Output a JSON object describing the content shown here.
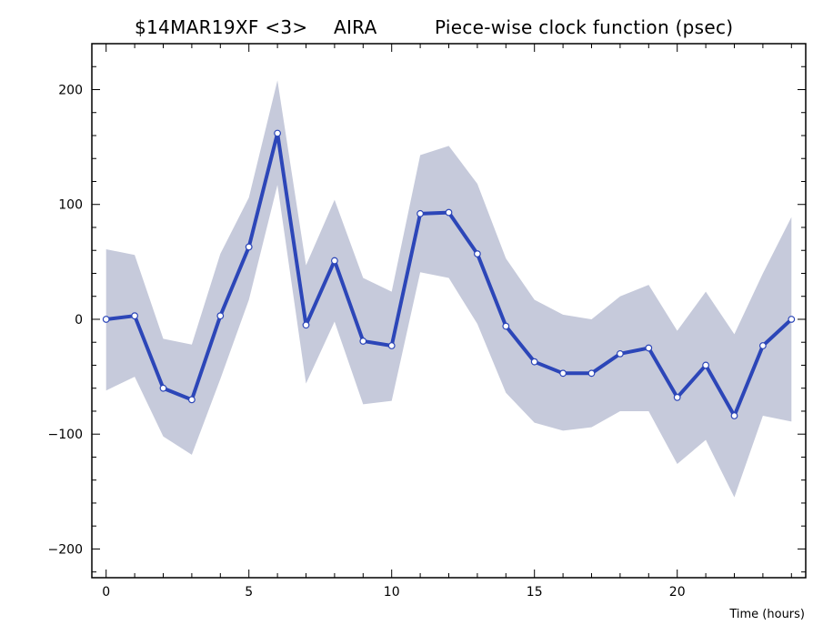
{
  "title": {
    "experiment": "$14MAR19XF <3>",
    "station": "AIRA",
    "description": "Piece-wise clock function (psec)"
  },
  "chart_data": {
    "type": "line",
    "title": "$14MAR19XF <3>   AIRA        Piece-wise clock function (psec)",
    "xlabel": "Time (hours)",
    "ylabel": "",
    "xlim": [
      -0.5,
      24.5
    ],
    "ylim": [
      -225,
      240
    ],
    "x_ticks": [
      0,
      5,
      10,
      15,
      20
    ],
    "y_ticks": [
      -200,
      -100,
      0,
      100,
      200
    ],
    "grid": false,
    "series": [
      {
        "x": [
          0,
          1,
          2,
          3,
          4,
          5,
          6,
          7,
          8,
          9,
          10,
          11,
          12,
          13,
          14,
          15,
          16,
          17,
          18,
          19,
          20,
          21,
          22,
          23,
          24
        ],
        "values": [
          0,
          3,
          -60,
          -70,
          3,
          63,
          162,
          -5,
          51,
          -19,
          -23,
          92,
          93,
          57,
          -6,
          -37,
          -47,
          -47,
          -30,
          -25,
          -68,
          -40,
          -84,
          -23,
          0
        ],
        "band_upper": [
          61,
          56,
          -17,
          -22,
          57,
          106,
          208,
          47,
          104,
          36,
          24,
          143,
          151,
          118,
          53,
          17,
          4,
          0,
          20,
          30,
          -10,
          24,
          -13,
          40,
          89
        ],
        "band_lower": [
          -62,
          -50,
          -102,
          -118,
          -52,
          17,
          117,
          -56,
          -2,
          -74,
          -71,
          41,
          36,
          -4,
          -64,
          -90,
          -97,
          -94,
          -80,
          -80,
          -126,
          -105,
          -155,
          -84,
          -89
        ]
      }
    ],
    "colors": {
      "line": "#2c46b8",
      "band": "#c6cadb",
      "marker_fill": "#ffffff",
      "axis": "#000000"
    }
  }
}
